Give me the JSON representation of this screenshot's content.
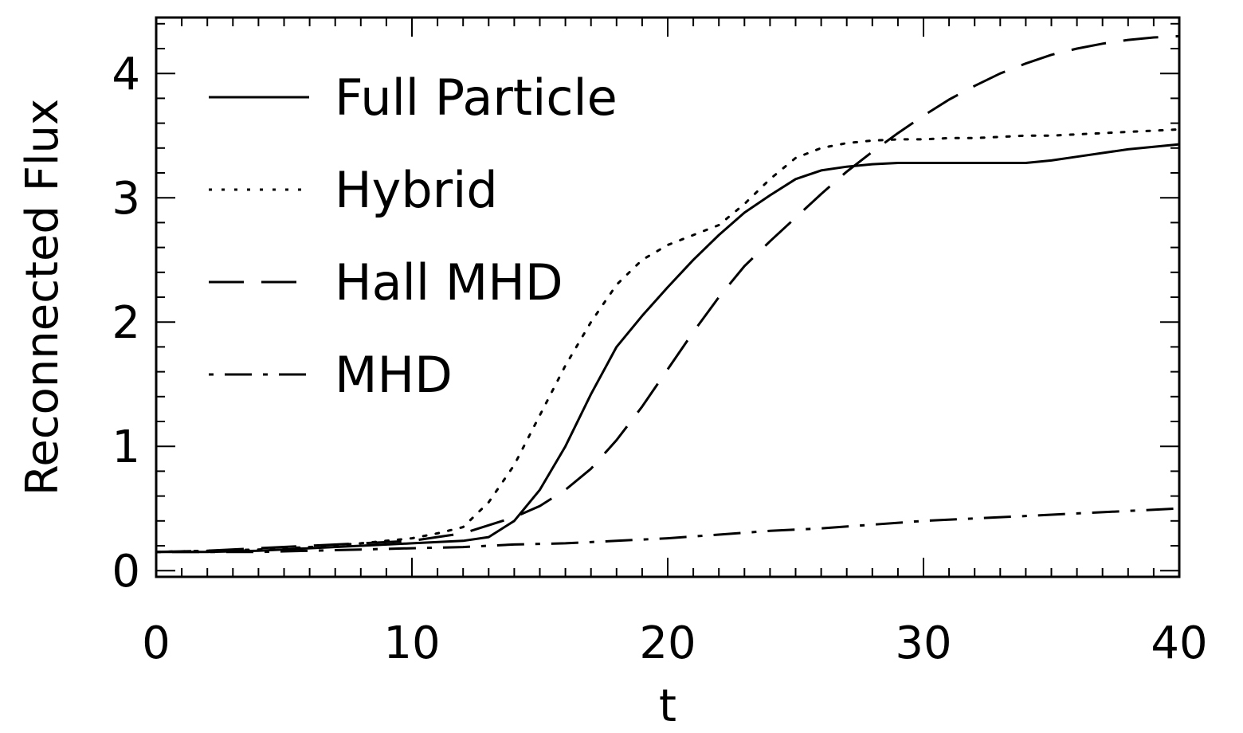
{
  "chart_data": {
    "type": "line",
    "title": "",
    "xlabel": "t",
    "ylabel": "Reconnected Flux",
    "xlim": [
      0,
      40
    ],
    "ylim": [
      -0.05,
      4.45
    ],
    "x_ticks": [
      0,
      10,
      20,
      30,
      40
    ],
    "y_ticks": [
      0,
      1,
      2,
      3,
      4
    ],
    "grid": false,
    "legend_position": "top-left",
    "line_color": "#000000",
    "series": [
      {
        "name": "Full Particle",
        "style": "solid",
        "x": [
          0,
          2,
          4,
          6,
          8,
          10,
          12,
          13,
          14,
          15,
          16,
          17,
          18,
          19,
          20,
          21,
          22,
          23,
          24,
          25,
          26,
          27,
          28,
          29,
          30,
          31,
          32,
          33,
          34,
          35,
          36,
          37,
          38,
          39,
          40
        ],
        "y": [
          0.15,
          0.15,
          0.16,
          0.18,
          0.2,
          0.22,
          0.24,
          0.27,
          0.4,
          0.65,
          1.0,
          1.42,
          1.8,
          2.05,
          2.28,
          2.5,
          2.7,
          2.88,
          3.02,
          3.15,
          3.22,
          3.25,
          3.27,
          3.28,
          3.28,
          3.28,
          3.28,
          3.28,
          3.28,
          3.3,
          3.33,
          3.36,
          3.39,
          3.41,
          3.43
        ]
      },
      {
        "name": "Hybrid",
        "style": "dotted",
        "x": [
          0,
          2,
          4,
          6,
          8,
          9,
          10,
          11,
          12,
          13,
          14,
          15,
          16,
          17,
          18,
          19,
          20,
          21,
          22,
          23,
          24,
          25,
          26,
          27,
          28,
          29,
          30,
          31,
          32,
          33,
          34,
          35,
          36,
          37,
          38,
          39,
          40
        ],
        "y": [
          0.15,
          0.16,
          0.17,
          0.19,
          0.22,
          0.24,
          0.26,
          0.3,
          0.35,
          0.55,
          0.85,
          1.25,
          1.65,
          2.0,
          2.3,
          2.5,
          2.62,
          2.7,
          2.78,
          2.95,
          3.15,
          3.32,
          3.4,
          3.44,
          3.46,
          3.47,
          3.47,
          3.48,
          3.48,
          3.49,
          3.5,
          3.5,
          3.51,
          3.52,
          3.53,
          3.54,
          3.55
        ]
      },
      {
        "name": "Hall MHD",
        "style": "dashed",
        "x": [
          0,
          2,
          4,
          6,
          8,
          10,
          12,
          14,
          15,
          16,
          17,
          18,
          19,
          20,
          21,
          22,
          23,
          24,
          25,
          26,
          27,
          28,
          29,
          30,
          31,
          32,
          33,
          34,
          35,
          36,
          37,
          38,
          39,
          40
        ],
        "y": [
          0.15,
          0.16,
          0.18,
          0.2,
          0.22,
          0.24,
          0.3,
          0.43,
          0.52,
          0.65,
          0.82,
          1.05,
          1.32,
          1.62,
          1.92,
          2.2,
          2.45,
          2.65,
          2.84,
          3.03,
          3.21,
          3.37,
          3.52,
          3.66,
          3.79,
          3.9,
          4.0,
          4.08,
          4.15,
          4.2,
          4.24,
          4.27,
          4.29,
          4.3
        ]
      },
      {
        "name": "MHD",
        "style": "dashdot",
        "x": [
          0,
          4,
          8,
          10,
          12,
          14,
          16,
          18,
          20,
          22,
          24,
          26,
          28,
          30,
          32,
          34,
          36,
          38,
          40
        ],
        "y": [
          0.15,
          0.15,
          0.17,
          0.18,
          0.19,
          0.21,
          0.22,
          0.24,
          0.26,
          0.29,
          0.32,
          0.34,
          0.37,
          0.4,
          0.42,
          0.44,
          0.46,
          0.48,
          0.5
        ]
      }
    ]
  }
}
